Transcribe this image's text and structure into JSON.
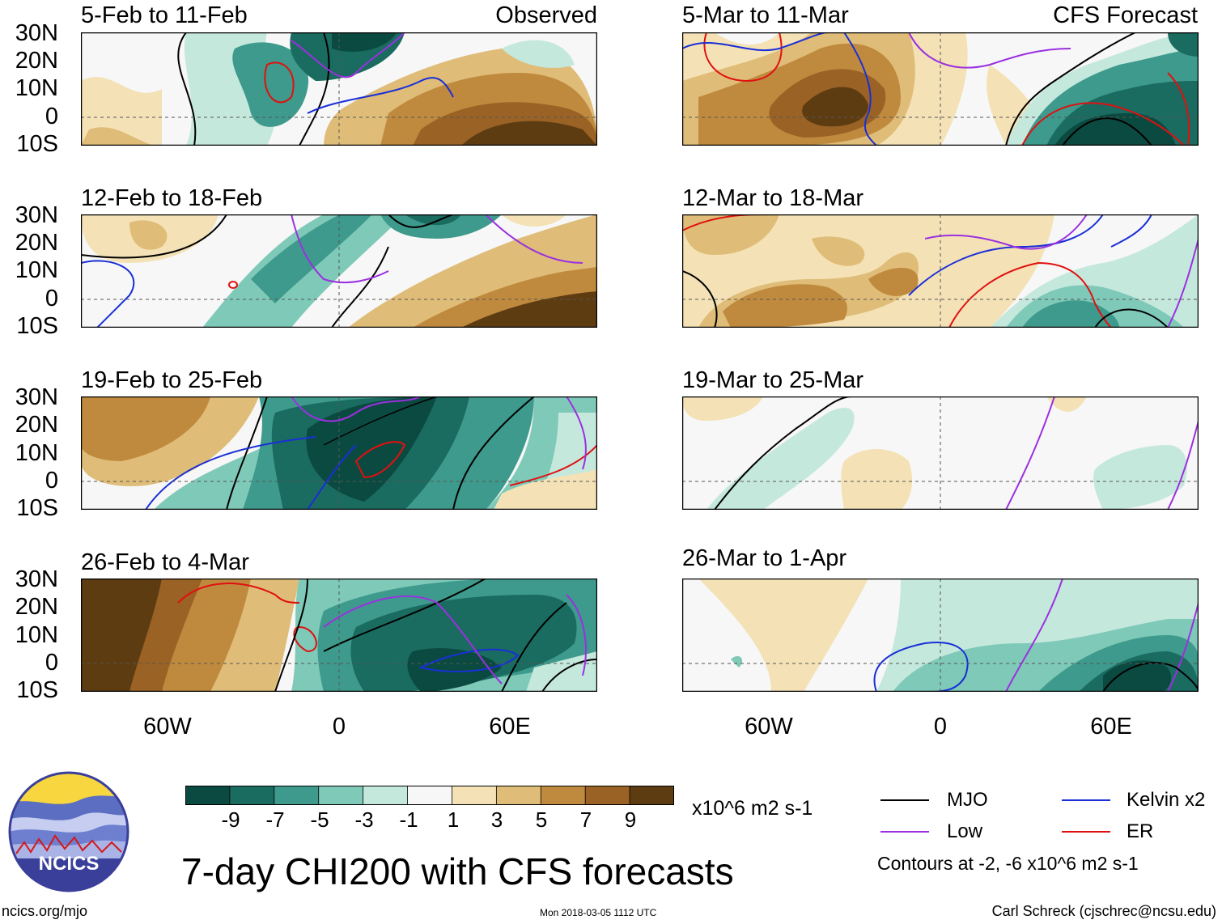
{
  "title": "7-day CHI200 with CFS forecasts",
  "columns": {
    "left_label": "Observed",
    "right_label": "CFS Forecast"
  },
  "panels": [
    {
      "id": "p1",
      "title": "5-Feb to 11-Feb",
      "column": "observed"
    },
    {
      "id": "p2",
      "title": "12-Feb to 18-Feb",
      "column": "observed"
    },
    {
      "id": "p3",
      "title": "19-Feb to 25-Feb",
      "column": "observed"
    },
    {
      "id": "p4",
      "title": "26-Feb to 4-Mar",
      "column": "observed"
    },
    {
      "id": "p5",
      "title": "5-Mar to 11-Mar",
      "column": "forecast"
    },
    {
      "id": "p6",
      "title": "12-Mar to 18-Mar",
      "column": "forecast"
    },
    {
      "id": "p7",
      "title": "19-Mar to 25-Mar",
      "column": "forecast"
    },
    {
      "id": "p8",
      "title": "26-Mar to 1-Apr",
      "column": "forecast"
    }
  ],
  "lat_labels": [
    "30N",
    "20N",
    "10N",
    "0",
    "10S"
  ],
  "lon_labels": [
    "60W",
    "0",
    "60E"
  ],
  "colorbar": {
    "unit": "x10^6 m2 s-1",
    "ticks": [
      "-9",
      "-7",
      "-5",
      "-3",
      "-1",
      "1",
      "3",
      "5",
      "7",
      "9"
    ],
    "colors": [
      "#0b4a40",
      "#1a6b60",
      "#3e9a8c",
      "#7fc9b8",
      "#c5e8dd",
      "#f7f7f7",
      "#f4e2b6",
      "#dfbd78",
      "#c08a3e",
      "#9a6224",
      "#5e3c12"
    ]
  },
  "legend": {
    "items": [
      {
        "label": "MJO",
        "color": "#000000"
      },
      {
        "label": "Kelvin x2",
        "color": "#1a2fd6"
      },
      {
        "label": "Low",
        "color": "#9b30e0"
      },
      {
        "label": "ER",
        "color": "#e01010"
      }
    ],
    "contours_note": "Contours at -2, -6 x10^6 m2 s-1"
  },
  "logo_text": "NCICS",
  "footer": {
    "url": "ncics.org/mjo",
    "timestamp": "Mon 2018-03-05 1112 UTC",
    "author": "Carl Schreck (cjschrec@ncsu.edu)"
  }
}
